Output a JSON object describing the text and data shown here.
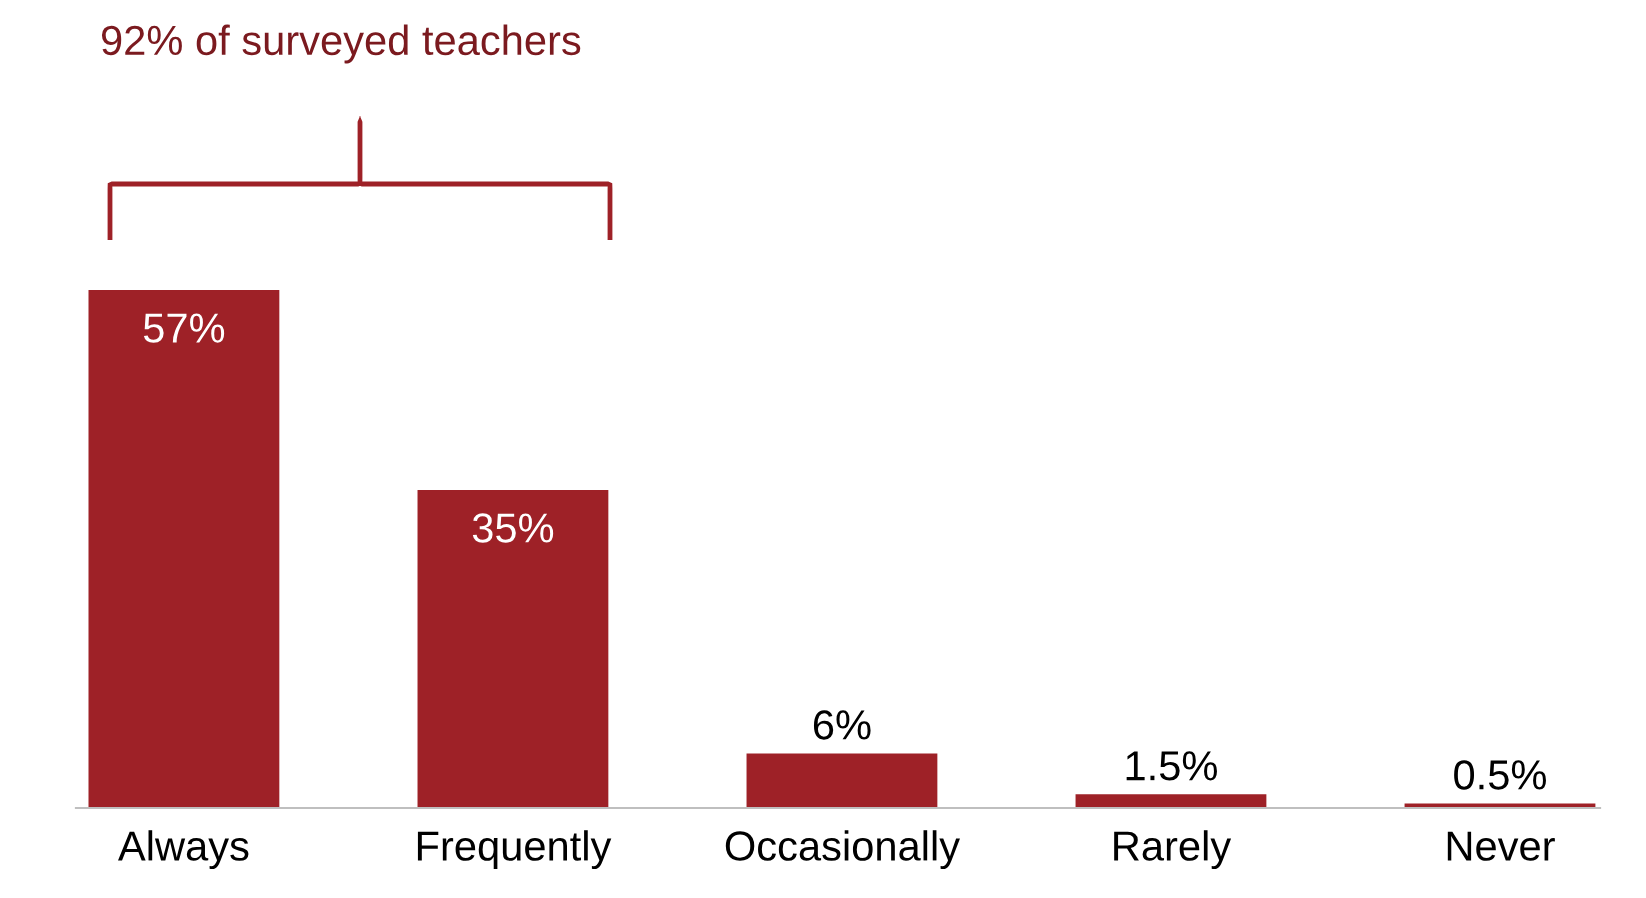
{
  "chart_data": {
    "type": "bar",
    "categories": [
      "Always",
      "Frequently",
      "Occasionally",
      "Rarely",
      "Never"
    ],
    "values": [
      57,
      35,
      6,
      1.5,
      0.5
    ],
    "value_labels": [
      "57%",
      "35%",
      "6%",
      "1.5%",
      "0.5%"
    ],
    "color": "#9e2127",
    "annotations": [
      "92% of surveyed teachers"
    ],
    "grid": false,
    "legend": false
  }
}
